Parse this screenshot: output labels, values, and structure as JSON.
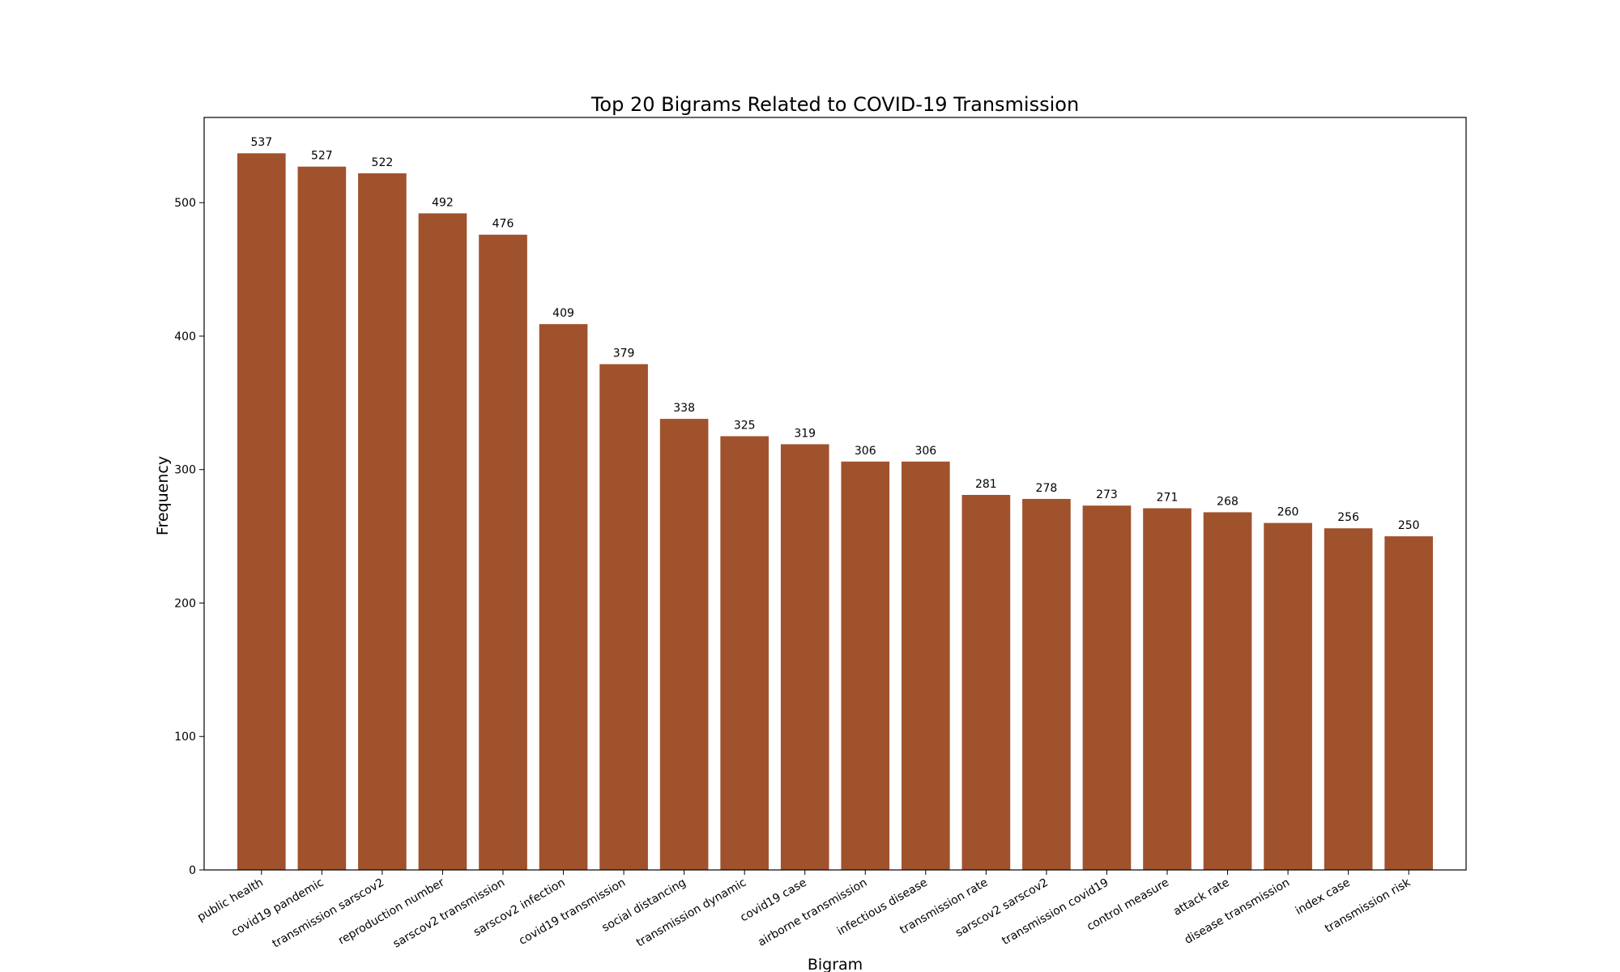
{
  "chart_data": {
    "type": "bar",
    "title": "Top 20 Bigrams Related to COVID-19 Transmission",
    "xlabel": "Bigram",
    "ylabel": "Frequency",
    "categories": [
      "public health",
      "covid19 pandemic",
      "transmission sarscov2",
      "reproduction number",
      "sarscov2 transmission",
      "sarscov2 infection",
      "covid19 transmission",
      "social distancing",
      "transmission dynamic",
      "covid19 case",
      "airborne transmission",
      "infectious disease",
      "transmission rate",
      "sarscov2 sarscov2",
      "transmission covid19",
      "control measure",
      "attack rate",
      "disease transmission",
      "index case",
      "transmission risk"
    ],
    "values": [
      537,
      527,
      522,
      492,
      476,
      409,
      379,
      338,
      325,
      319,
      306,
      306,
      281,
      278,
      273,
      271,
      268,
      260,
      256,
      250
    ],
    "ylim": [
      0,
      563.85
    ],
    "yticks": [
      0,
      100,
      200,
      300,
      400,
      500
    ],
    "bar_color": "#A0522D",
    "grid": false,
    "data_labels": true
  }
}
